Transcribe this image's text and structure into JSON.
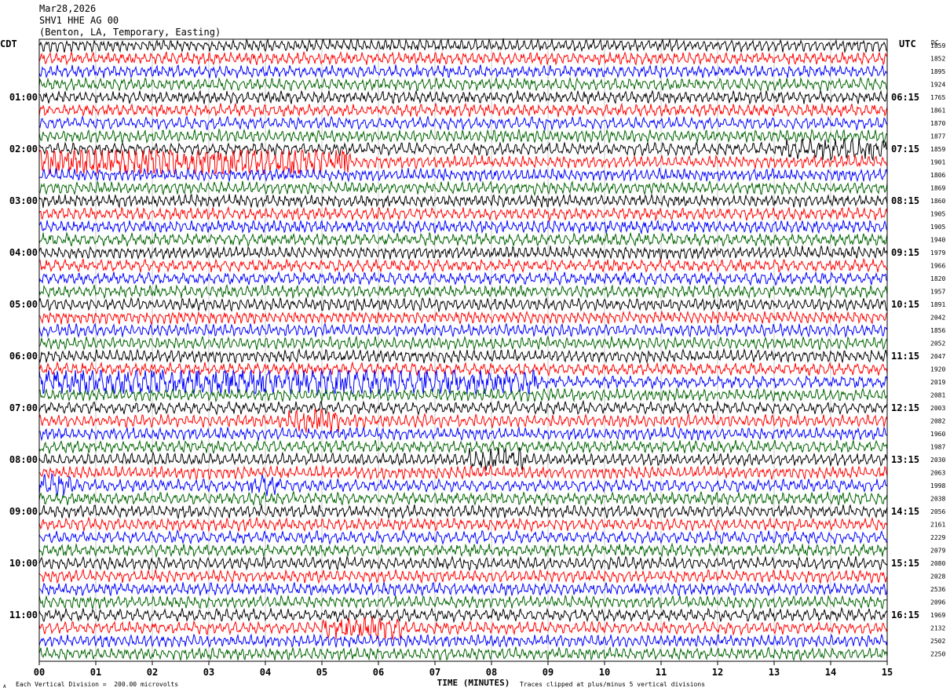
{
  "header": {
    "date": "Mar28,2026",
    "station": "SHV1 HHE AG 00",
    "location": "(Benton, LA, Temporary, Easting)"
  },
  "left_tz": "CDT",
  "right_tz": "UTC",
  "dc_label": "DC",
  "footer": {
    "scale": "Each Vertical Division =  200.00 microvolts",
    "clip": "Traces clipped at plus/minus 5 vertical divisions",
    "corner_mark": "A"
  },
  "chart_data": {
    "type": "line",
    "title": "Mar28,2026 SHV1 HHE AG 00 (Benton, LA, Temporary, Easting)",
    "xlabel": "TIME (MINUTES)",
    "xlim": [
      0,
      15
    ],
    "x_ticks": [
      "00",
      "01",
      "02",
      "03",
      "04",
      "05",
      "06",
      "07",
      "08",
      "09",
      "10",
      "11",
      "12",
      "13",
      "14",
      "15"
    ],
    "grid": true,
    "rows_per_hour": 4,
    "minutes_per_row": 15,
    "trace_colors": [
      "#000000",
      "#ff0000",
      "#0000ff",
      "#006400"
    ],
    "left_hour_labels": [
      "01:00",
      "02:00",
      "03:00",
      "04:00",
      "05:00",
      "06:00",
      "07:00",
      "08:00",
      "09:00",
      "10:00",
      "11:00"
    ],
    "right_hour_labels": [
      "06:15",
      "07:15",
      "08:15",
      "09:15",
      "10:15",
      "11:15",
      "12:15",
      "13:15",
      "14:15",
      "15:15",
      "16:15"
    ],
    "dc_offsets": [
      "1859",
      "1852",
      "1895",
      "1924",
      "1765",
      "1861",
      "1870",
      "1877",
      "1859",
      "1901",
      "1806",
      "1869",
      "1860",
      "1905",
      "1905",
      "1940",
      "1979",
      "1966",
      "1820",
      "1957",
      "1891",
      "2042",
      "1856",
      "2052",
      "2047",
      "1920",
      "2019",
      "2081",
      "2003",
      "2082",
      "1960",
      "1987",
      "2030",
      "2063",
      "1998",
      "2038",
      "2056",
      "2161",
      "2229",
      "2079",
      "2080",
      "2028",
      "2536",
      "2096",
      "1969",
      "2132",
      "2502",
      "2250"
    ],
    "events": [
      {
        "row": 9,
        "start_min": 0.0,
        "end_min": 5.5,
        "amp": 2.6
      },
      {
        "row": 8,
        "start_min": 13.2,
        "end_min": 15.0,
        "amp": 1.7
      },
      {
        "row": 26,
        "start_min": 0.0,
        "end_min": 8.8,
        "amp": 2.4
      },
      {
        "row": 29,
        "start_min": 4.4,
        "end_min": 5.3,
        "amp": 2.0
      },
      {
        "row": 32,
        "start_min": 7.6,
        "end_min": 8.6,
        "amp": 1.8
      },
      {
        "row": 34,
        "start_min": 0.0,
        "end_min": 0.6,
        "amp": 1.7
      },
      {
        "row": 34,
        "start_min": 3.7,
        "end_min": 4.3,
        "amp": 1.6
      },
      {
        "row": 45,
        "start_min": 5.0,
        "end_min": 6.4,
        "amp": 1.8
      }
    ]
  }
}
